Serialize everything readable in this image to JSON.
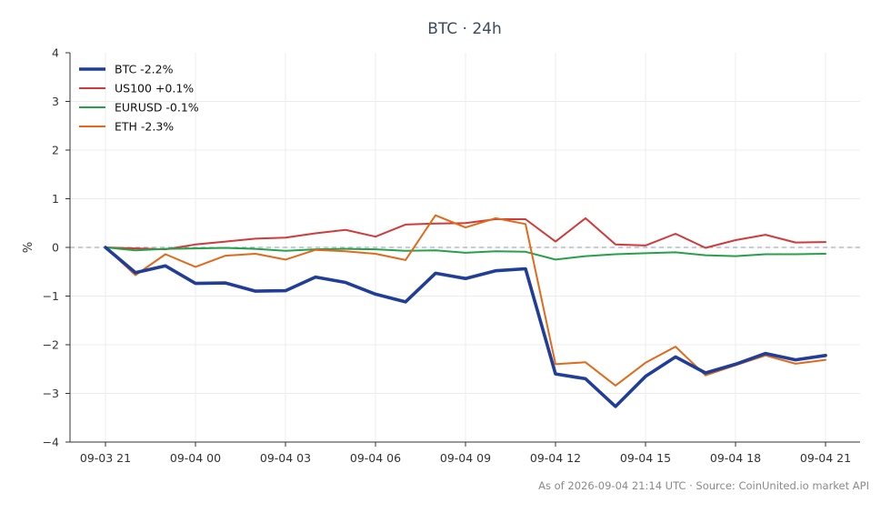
{
  "chart_data": {
    "type": "line",
    "title": "BTC · 24h",
    "xlabel": "",
    "ylabel": "%",
    "ylim": [
      -4,
      4
    ],
    "yticks": [
      "−4",
      "−3",
      "−2",
      "−1",
      "0",
      "1",
      "2",
      "3",
      "4"
    ],
    "x": [
      "09-03 21",
      "09-03 22",
      "09-03 23",
      "09-04 00",
      "09-04 01",
      "09-04 02",
      "09-04 03",
      "09-04 04",
      "09-04 05",
      "09-04 06",
      "09-04 07",
      "09-04 08",
      "09-04 09",
      "09-04 10",
      "09-04 11",
      "09-04 12",
      "09-04 13",
      "09-04 14",
      "09-04 15",
      "09-04 16",
      "09-04 17",
      "09-04 18",
      "09-04 19",
      "09-04 20",
      "09-04 21"
    ],
    "xtick_labels": [
      "09-03 21",
      "09-04 00",
      "09-04 03",
      "09-04 06",
      "09-04 09",
      "09-04 12",
      "09-04 15",
      "09-04 18",
      "09-04 21"
    ],
    "zero_line": true,
    "grid": true,
    "legend_position": "top-left",
    "series": [
      {
        "name": "BTC -2.2%",
        "color": "#1f3d99",
        "values": [
          0.0,
          -0.52,
          -0.38,
          -0.74,
          -0.73,
          -0.9,
          -0.89,
          -0.61,
          -0.72,
          -0.96,
          -1.12,
          -0.53,
          -0.64,
          -0.48,
          -0.44,
          -2.6,
          -2.7,
          -3.27,
          -2.65,
          -2.25,
          -2.58,
          -2.4,
          -2.18,
          -2.31,
          -2.22
        ]
      },
      {
        "name": "US100 +0.1%",
        "color": "#d23a3a",
        "values": [
          0.0,
          -0.02,
          -0.04,
          0.06,
          0.12,
          0.18,
          0.2,
          0.29,
          0.36,
          0.22,
          0.47,
          0.49,
          0.5,
          0.58,
          0.58,
          0.12,
          0.6,
          0.06,
          0.04,
          0.28,
          -0.01,
          0.15,
          0.26,
          0.1,
          0.11
        ]
      },
      {
        "name": "EURUSD -0.1%",
        "color": "#27a04a",
        "values": [
          0.0,
          -0.06,
          -0.03,
          -0.02,
          -0.01,
          -0.03,
          -0.07,
          -0.04,
          -0.03,
          -0.04,
          -0.07,
          -0.06,
          -0.11,
          -0.08,
          -0.09,
          -0.25,
          -0.18,
          -0.14,
          -0.12,
          -0.1,
          -0.16,
          -0.18,
          -0.14,
          -0.14,
          -0.13
        ]
      },
      {
        "name": "ETH -2.3%",
        "color": "#e06a1c",
        "values": [
          0.0,
          -0.57,
          -0.14,
          -0.4,
          -0.17,
          -0.13,
          -0.25,
          -0.05,
          -0.08,
          -0.13,
          -0.26,
          0.66,
          0.41,
          0.6,
          0.48,
          -2.4,
          -2.36,
          -2.84,
          -2.37,
          -2.04,
          -2.63,
          -2.42,
          -2.22,
          -2.39,
          -2.31
        ]
      }
    ],
    "footer": "As of 2026-09-04 21:14 UTC · Source: CoinUnited.io market API"
  }
}
